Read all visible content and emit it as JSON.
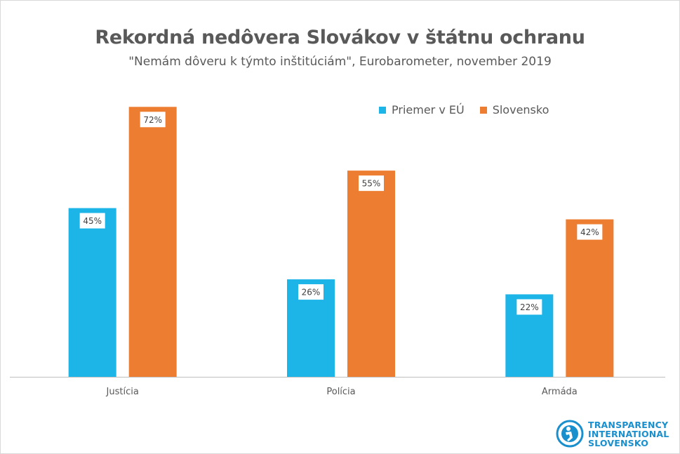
{
  "colors": {
    "eu": "#1db4e8",
    "sk": "#ed7d31",
    "axis": "#bfbfbf",
    "text": "#595959",
    "logo": "#1a8fce"
  },
  "chart_data": {
    "type": "bar",
    "title": "Rekordná nedôvera Slovákov v štátnu ochranu",
    "subtitle": "\"Nemám dôveru k týmto inštitúciám\",  Eurobarometer, november 2019",
    "categories": [
      "Justícia",
      "Polícia",
      "Armáda"
    ],
    "series": [
      {
        "name": "Priemer v EÚ",
        "values": [
          45,
          26,
          22
        ],
        "labels": [
          "45%",
          "26%",
          "22%"
        ]
      },
      {
        "name": "Slovensko",
        "values": [
          72,
          55,
          42
        ],
        "labels": [
          "72%",
          "55%",
          "42%"
        ]
      }
    ],
    "ylim": [
      0,
      80
    ],
    "grid": false,
    "legend_position": "top-right"
  },
  "logo": {
    "line1": "TRANSPARENCY",
    "line2": "INTERNATIONAL",
    "line3": "SLOVENSKO",
    "icon": "transparency-international-logo-icon"
  }
}
